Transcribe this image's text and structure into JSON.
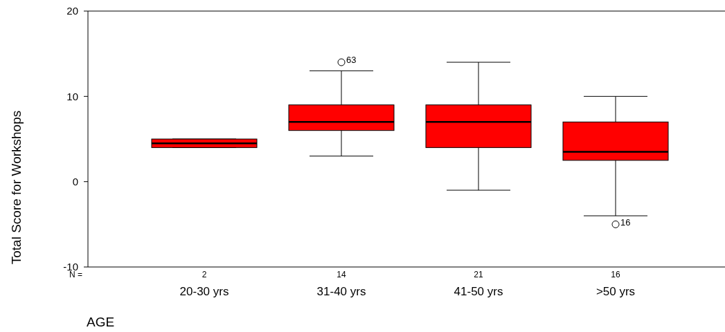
{
  "chart_data": {
    "type": "box",
    "xlabel": "AGE",
    "ylabel": "Total Score for Workshops",
    "categories": [
      "20-30 yrs",
      "31-40 yrs",
      "41-50 yrs",
      ">50 yrs"
    ],
    "series": [
      {
        "color": "#ff0000",
        "boxes": [
          {
            "low": 4,
            "q1": 4,
            "median": 4.5,
            "q3": 5,
            "high": 5
          },
          {
            "low": 3,
            "q1": 6,
            "median": 7,
            "q3": 9,
            "high": 13,
            "outliers": [
              14
            ]
          },
          {
            "low": -1,
            "q1": 4,
            "median": 7,
            "q3": 9,
            "high": 14
          },
          {
            "low": -4,
            "q1": 2.5,
            "median": 3.5,
            "q3": 7,
            "high": 10,
            "outliers": [
              -5
            ]
          }
        ]
      }
    ],
    "ylim": [
      -10,
      20
    ],
    "yticks": [
      -10,
      0,
      10,
      20
    ],
    "grid": false,
    "annotations": [
      "N =",
      "2",
      "14",
      "21",
      "16",
      "63",
      "16"
    ]
  }
}
